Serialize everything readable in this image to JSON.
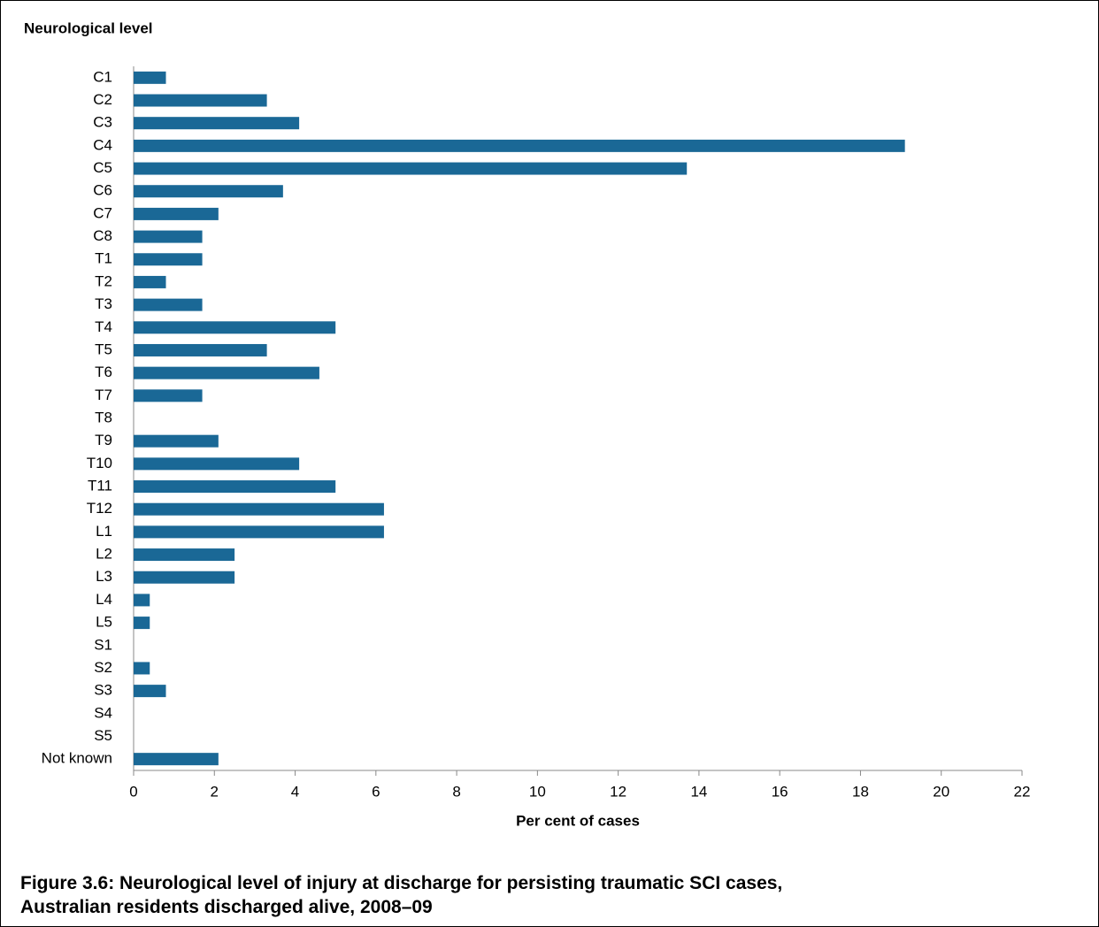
{
  "chart_data": {
    "type": "hbar",
    "y_label": "Neurological level",
    "x_label": "Per cent of cases",
    "caption": "Figure 3.6: Neurological level of injury at discharge for persisting traumatic SCI cases, Australian residents discharged alive, 2008–09",
    "categories": [
      "C1",
      "C2",
      "C3",
      "C4",
      "C5",
      "C6",
      "C7",
      "C8",
      "T1",
      "T2",
      "T3",
      "T4",
      "T5",
      "T6",
      "T7",
      "T8",
      "T9",
      "T10",
      "T11",
      "T12",
      "L1",
      "L2",
      "L3",
      "L4",
      "L5",
      "S1",
      "S2",
      "S3",
      "S4",
      "S5",
      "Not known"
    ],
    "values": [
      0.8,
      3.3,
      4.1,
      19.1,
      13.7,
      3.7,
      2.1,
      1.7,
      1.7,
      0.8,
      1.7,
      5.0,
      3.3,
      4.6,
      1.7,
      0,
      2.1,
      4.1,
      5.0,
      6.2,
      6.2,
      2.5,
      2.5,
      0.4,
      0.4,
      0,
      0.4,
      0.8,
      0,
      0,
      2.1
    ],
    "color": "#1a6896",
    "xlim": [
      0,
      22
    ],
    "xticks": [
      0,
      2,
      4,
      6,
      8,
      10,
      12,
      14,
      16,
      18,
      20,
      22
    ]
  }
}
